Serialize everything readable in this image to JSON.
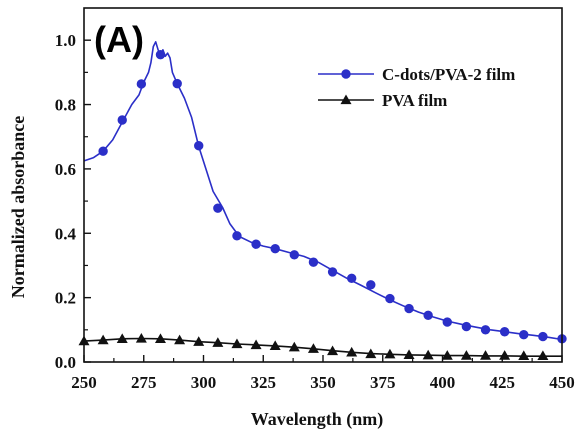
{
  "chart_data": {
    "type": "line",
    "panel_label": "(A)",
    "xlabel": "Wavelength (nm)",
    "ylabel": "Normalized absorbance",
    "xlim": [
      250,
      450
    ],
    "ylim": [
      0.0,
      1.1
    ],
    "xticks": [
      250,
      275,
      300,
      325,
      350,
      375,
      400,
      425,
      450
    ],
    "xtick_labels": [
      "250",
      "275",
      "300",
      "325",
      "350",
      "375",
      "400",
      "425",
      "450"
    ],
    "yticks": [
      0.0,
      0.2,
      0.4,
      0.6,
      0.8,
      1.0
    ],
    "ytick_labels": [
      "0.0",
      "0.2",
      "0.4",
      "0.6",
      "0.8",
      "1.0"
    ],
    "grid": false,
    "legend": "top-right",
    "colors": {
      "cdots": "#2b2fc8",
      "pva": "#111111"
    },
    "series": [
      {
        "name": "C-dots/PVA-2 film",
        "marker": "circle",
        "line": [
          [
            250,
            0.625
          ],
          [
            254,
            0.635
          ],
          [
            258,
            0.655
          ],
          [
            262,
            0.69
          ],
          [
            266,
            0.745
          ],
          [
            270,
            0.8
          ],
          [
            273,
            0.83
          ],
          [
            275,
            0.87
          ],
          [
            277,
            0.9
          ],
          [
            278,
            0.93
          ],
          [
            279,
            0.98
          ],
          [
            280,
            0.995
          ],
          [
            281,
            0.97
          ],
          [
            282,
            0.955
          ],
          [
            283,
            0.97
          ],
          [
            284,
            0.95
          ],
          [
            285,
            0.96
          ],
          [
            286,
            0.945
          ],
          [
            287,
            0.9
          ],
          [
            289,
            0.865
          ],
          [
            292,
            0.82
          ],
          [
            295,
            0.76
          ],
          [
            298,
            0.67
          ],
          [
            301,
            0.6
          ],
          [
            304,
            0.53
          ],
          [
            308,
            0.48
          ],
          [
            311,
            0.43
          ],
          [
            315,
            0.39
          ],
          [
            320,
            0.372
          ],
          [
            325,
            0.36
          ],
          [
            330,
            0.352
          ],
          [
            336,
            0.34
          ],
          [
            342,
            0.328
          ],
          [
            348,
            0.31
          ],
          [
            354,
            0.285
          ],
          [
            360,
            0.26
          ],
          [
            366,
            0.238
          ],
          [
            372,
            0.215
          ],
          [
            378,
            0.193
          ],
          [
            384,
            0.173
          ],
          [
            390,
            0.155
          ],
          [
            396,
            0.14
          ],
          [
            402,
            0.127
          ],
          [
            408,
            0.117
          ],
          [
            414,
            0.108
          ],
          [
            420,
            0.1
          ],
          [
            426,
            0.094
          ],
          [
            432,
            0.088
          ],
          [
            438,
            0.083
          ],
          [
            444,
            0.077
          ],
          [
            450,
            0.07
          ]
        ],
        "markers": [
          [
            258,
            0.655
          ],
          [
            266,
            0.752
          ],
          [
            274,
            0.864
          ],
          [
            282,
            0.955
          ],
          [
            289,
            0.865
          ],
          [
            298,
            0.672
          ],
          [
            306,
            0.478
          ],
          [
            314,
            0.392
          ],
          [
            322,
            0.366
          ],
          [
            330,
            0.352
          ],
          [
            338,
            0.333
          ],
          [
            346,
            0.31
          ],
          [
            354,
            0.28
          ],
          [
            362,
            0.26
          ],
          [
            370,
            0.24
          ],
          [
            378,
            0.197
          ],
          [
            386,
            0.166
          ],
          [
            394,
            0.145
          ],
          [
            402,
            0.124
          ],
          [
            410,
            0.11
          ],
          [
            418,
            0.1
          ],
          [
            426,
            0.094
          ],
          [
            434,
            0.085
          ],
          [
            442,
            0.079
          ],
          [
            450,
            0.072
          ]
        ]
      },
      {
        "name": "PVA film",
        "marker": "triangle",
        "line": [
          [
            250,
            0.065
          ],
          [
            258,
            0.068
          ],
          [
            266,
            0.072
          ],
          [
            274,
            0.073
          ],
          [
            282,
            0.072
          ],
          [
            290,
            0.068
          ],
          [
            298,
            0.063
          ],
          [
            306,
            0.06
          ],
          [
            314,
            0.056
          ],
          [
            322,
            0.053
          ],
          [
            330,
            0.05
          ],
          [
            338,
            0.046
          ],
          [
            346,
            0.041
          ],
          [
            354,
            0.035
          ],
          [
            362,
            0.03
          ],
          [
            370,
            0.026
          ],
          [
            378,
            0.024
          ],
          [
            386,
            0.022
          ],
          [
            394,
            0.021
          ],
          [
            402,
            0.02
          ],
          [
            410,
            0.02
          ],
          [
            418,
            0.019
          ],
          [
            426,
            0.019
          ],
          [
            434,
            0.018
          ],
          [
            442,
            0.018
          ],
          [
            450,
            0.018
          ]
        ],
        "markers": [
          [
            250,
            0.065
          ],
          [
            258,
            0.068
          ],
          [
            266,
            0.072
          ],
          [
            274,
            0.073
          ],
          [
            282,
            0.072
          ],
          [
            290,
            0.068
          ],
          [
            298,
            0.063
          ],
          [
            306,
            0.06
          ],
          [
            314,
            0.056
          ],
          [
            322,
            0.053
          ],
          [
            330,
            0.05
          ],
          [
            338,
            0.046
          ],
          [
            346,
            0.041
          ],
          [
            354,
            0.034
          ],
          [
            362,
            0.03
          ],
          [
            370,
            0.025
          ],
          [
            378,
            0.024
          ],
          [
            386,
            0.022
          ],
          [
            394,
            0.021
          ],
          [
            402,
            0.02
          ],
          [
            410,
            0.02
          ],
          [
            418,
            0.02
          ],
          [
            426,
            0.02
          ],
          [
            434,
            0.019
          ],
          [
            442,
            0.019
          ]
        ]
      }
    ]
  }
}
